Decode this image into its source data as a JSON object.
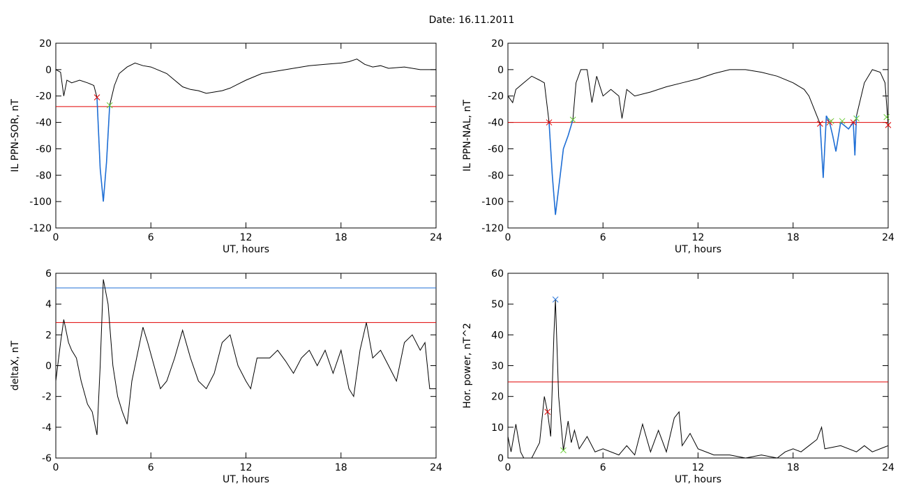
{
  "title": "Date:  16.11.2011",
  "chart_data": [
    {
      "type": "line",
      "x_label": "UT, hours",
      "y_label": "IL PPN-SOR, nT",
      "xlim": [
        0,
        24
      ],
      "ylim": [
        -120,
        20
      ],
      "xticks": [
        0,
        6,
        12,
        18,
        24
      ],
      "yticks": [
        -120,
        -100,
        -80,
        -60,
        -40,
        -20,
        0,
        20
      ],
      "series": [
        {
          "color": "#000000",
          "x": [
            0,
            0.3,
            0.5,
            0.7,
            1,
            1.5,
            2,
            2.4,
            2.6,
            2.8,
            3.0,
            3.2,
            3.4,
            3.7,
            4,
            4.5,
            5,
            5.5,
            6,
            7,
            7.5,
            8,
            8.5,
            9,
            9.5,
            10,
            10.5,
            11,
            11.5,
            12,
            13,
            14,
            15,
            16,
            17,
            18,
            18.5,
            19,
            19.5,
            20,
            20.5,
            21,
            22,
            23,
            24
          ],
          "values": [
            0,
            -2,
            -20,
            -8,
            -10,
            -8,
            -10,
            -12,
            -21,
            -75,
            -100,
            -70,
            -27,
            -12,
            -3,
            2,
            5,
            3,
            2,
            -3,
            -8,
            -13,
            -15,
            -16,
            -18,
            -17,
            -16,
            -14,
            -11,
            -8,
            -3,
            -1,
            1,
            3,
            4,
            5,
            6,
            8,
            4,
            2,
            3,
            1,
            2,
            0,
            0
          ]
        },
        {
          "color": "#1f6fd6",
          "x": [
            2.6,
            2.8,
            3.0,
            3.2,
            3.4
          ],
          "values": [
            -21,
            -75,
            -100,
            -70,
            -27
          ]
        }
      ],
      "hlines": [
        {
          "value": -28,
          "color": "#e00000"
        }
      ],
      "markers": [
        {
          "x": 2.6,
          "y": -21,
          "color": "#e00000"
        },
        {
          "x": 3.4,
          "y": -27,
          "color": "#66cc33"
        }
      ]
    },
    {
      "type": "line",
      "x_label": "UT, hours",
      "y_label": "IL PPN-NAL, nT",
      "xlim": [
        0,
        24
      ],
      "ylim": [
        -120,
        20
      ],
      "xticks": [
        0,
        6,
        12,
        18,
        24
      ],
      "yticks": [
        -120,
        -100,
        -80,
        -60,
        -40,
        -20,
        0,
        20
      ],
      "series": [
        {
          "color": "#000000",
          "x": [
            0,
            0.3,
            0.5,
            1,
            1.5,
            2,
            2.3,
            2.6,
            2.8,
            3.0,
            3.2,
            3.5,
            3.8,
            4.1,
            4.3,
            4.6,
            5,
            5.3,
            5.6,
            6,
            6.5,
            7,
            7.2,
            7.5,
            8,
            9,
            10,
            11,
            12,
            13,
            14,
            15,
            16,
            17,
            18,
            18.7,
            19,
            19.5,
            19.7,
            19.9,
            20.1,
            20.3,
            20.5,
            20.7,
            21,
            21.5,
            21.8,
            21.9,
            22,
            22.5,
            23,
            23.5,
            23.8,
            24
          ],
          "values": [
            -20,
            -25,
            -15,
            -10,
            -5,
            -8,
            -10,
            -40,
            -80,
            -110,
            -90,
            -60,
            -50,
            -38,
            -10,
            0,
            0,
            -25,
            -5,
            -20,
            -15,
            -20,
            -37,
            -15,
            -20,
            -17,
            -13,
            -10,
            -7,
            -3,
            0,
            0,
            -2,
            -5,
            -10,
            -15,
            -20,
            -35,
            -41,
            -82,
            -35,
            -40,
            -50,
            -62,
            -40,
            -45,
            -40,
            -65,
            -35,
            -10,
            0,
            -2,
            -10,
            -42
          ]
        },
        {
          "color": "#1f6fd6",
          "x": [
            2.6,
            2.8,
            3.0,
            3.2,
            3.5,
            3.8,
            4.1,
            12,
            19.7,
            19.9,
            20.1,
            20.3,
            20.5,
            20.7,
            21,
            21.5,
            21.8,
            21.9,
            22
          ],
          "values": [
            -40,
            -80,
            -110,
            -90,
            -60,
            -50,
            -38,
            null,
            -41,
            -82,
            -35,
            -40,
            -50,
            -62,
            -40,
            -45,
            -40,
            -65,
            -35
          ]
        }
      ],
      "hlines": [
        {
          "value": -40,
          "color": "#e00000"
        }
      ],
      "markers": [
        {
          "x": 2.6,
          "y": -40,
          "color": "#e00000"
        },
        {
          "x": 19.7,
          "y": -41,
          "color": "#e00000"
        },
        {
          "x": 20.3,
          "y": -40,
          "color": "#e00000"
        },
        {
          "x": 21.8,
          "y": -40,
          "color": "#e00000"
        },
        {
          "x": 24,
          "y": -42,
          "color": "#e00000"
        },
        {
          "x": 4.1,
          "y": -38,
          "color": "#66cc33"
        },
        {
          "x": 20.4,
          "y": -39,
          "color": "#66cc33"
        },
        {
          "x": 21.1,
          "y": -39,
          "color": "#66cc33"
        },
        {
          "x": 22,
          "y": -37,
          "color": "#66cc33"
        },
        {
          "x": 23.9,
          "y": -36,
          "color": "#66cc33"
        }
      ]
    },
    {
      "type": "line",
      "x_label": "UT, hours",
      "y_label": "deltaX, nT",
      "xlim": [
        0,
        24
      ],
      "ylim": [
        -6,
        6
      ],
      "xticks": [
        0,
        6,
        12,
        18,
        24
      ],
      "yticks": [
        -6,
        -4,
        -2,
        0,
        2,
        4,
        6
      ],
      "series": [
        {
          "color": "#000000",
          "x": [
            0,
            0.3,
            0.5,
            0.8,
            1,
            1.3,
            1.6,
            2,
            2.3,
            2.6,
            2.8,
            3.0,
            3.3,
            3.6,
            3.9,
            4.2,
            4.5,
            4.8,
            5.2,
            5.5,
            5.8,
            6.2,
            6.6,
            7,
            7.5,
            8,
            8.5,
            9,
            9.5,
            10,
            10.5,
            11,
            11.5,
            12,
            12.3,
            12.7,
            13.5,
            14,
            14.5,
            15,
            15.5,
            16,
            16.5,
            17,
            17.5,
            18,
            18.5,
            18.8,
            19.2,
            19.6,
            20,
            20.5,
            21,
            21.5,
            22,
            22.5,
            23,
            23.3,
            23.6,
            24
          ],
          "values": [
            -1,
            1.5,
            3,
            1.5,
            1,
            0.5,
            -1,
            -2.5,
            -3,
            -4.5,
            0,
            5.6,
            4,
            0,
            -2,
            -3,
            -3.8,
            -1,
            1,
            2.5,
            1.5,
            0,
            -1.5,
            -1,
            0.5,
            2.3,
            0.5,
            -1,
            -1.5,
            -0.5,
            1.5,
            2,
            0,
            -1,
            -1.5,
            0.5,
            0.5,
            1,
            0.3,
            -0.5,
            0.5,
            1,
            0,
            1,
            -0.5,
            1,
            -1.5,
            -2,
            1,
            2.8,
            0.5,
            1,
            0,
            -1,
            1.5,
            2,
            1,
            1.5,
            -1.5,
            -1.5
          ]
        }
      ],
      "hlines": [
        {
          "value": 5.05,
          "color": "#1f6fd6"
        },
        {
          "value": 2.8,
          "color": "#e00000"
        }
      ],
      "markers": []
    },
    {
      "type": "line",
      "x_label": "UT, hours",
      "y_label": "Hor. power, nT^2",
      "xlim": [
        0,
        24
      ],
      "ylim": [
        0,
        60
      ],
      "xticks": [
        0,
        6,
        12,
        18,
        24
      ],
      "yticks": [
        0,
        10,
        20,
        30,
        40,
        50,
        60
      ],
      "series": [
        {
          "color": "#000000",
          "x": [
            0,
            0.2,
            0.5,
            0.8,
            1,
            1.5,
            2,
            2.3,
            2.5,
            2.7,
            2.9,
            3.0,
            3.2,
            3.5,
            3.8,
            4,
            4.2,
            4.5,
            5,
            5.5,
            6,
            7,
            7.5,
            8,
            8.5,
            9,
            9.5,
            10,
            10.5,
            10.8,
            11,
            11.5,
            12,
            13,
            14,
            15,
            16,
            17,
            17.5,
            18,
            18.5,
            19,
            19.5,
            19.8,
            20,
            21,
            22,
            22.5,
            23,
            24
          ],
          "values": [
            7,
            2,
            11,
            2,
            0,
            0,
            5,
            20,
            15,
            7,
            40,
            51.5,
            20,
            2.5,
            12,
            5,
            9,
            3,
            7,
            2,
            3,
            1,
            4,
            1,
            11,
            2,
            9,
            2,
            13,
            15,
            4,
            8,
            3,
            1,
            1,
            0,
            1,
            0,
            2,
            3,
            2,
            4,
            6,
            10,
            3,
            4,
            2,
            4,
            2,
            4
          ]
        }
      ],
      "hlines": [
        {
          "value": 24.7,
          "color": "#e00000"
        }
      ],
      "markers": [
        {
          "x": 3.0,
          "y": 51.5,
          "color": "#1f6fd6"
        },
        {
          "x": 2.5,
          "y": 15,
          "color": "#e00000"
        },
        {
          "x": 3.5,
          "y": 2.5,
          "color": "#66cc33"
        }
      ]
    }
  ]
}
